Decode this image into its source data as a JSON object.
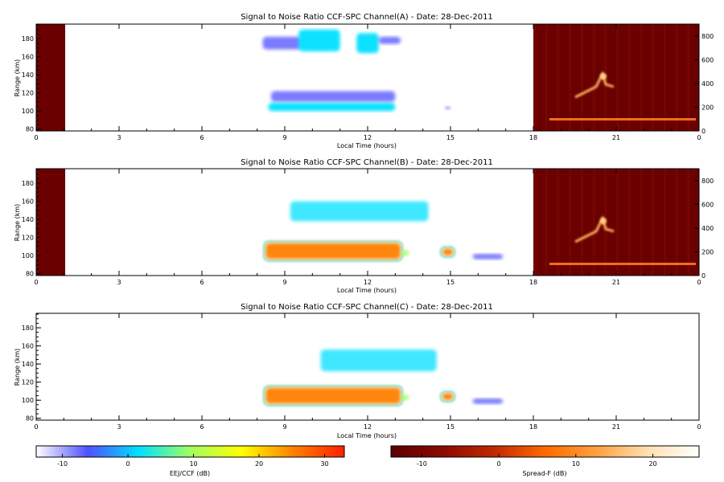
{
  "chart_data": [
    {
      "type": "heatmap",
      "title": "Signal to Noise Ratio CCF-SPC Channel(A) - Date: 28-Dec-2011",
      "xlabel": "Local Time (hours)",
      "ylabel": "Range (km)",
      "xlim": [
        0,
        24
      ],
      "ylim": [
        78,
        196
      ],
      "xticks": [
        "0",
        "3",
        "6",
        "9",
        "12",
        "15",
        "18",
        "21",
        "0"
      ],
      "yticks": [
        "80",
        "100",
        "120",
        "140",
        "160",
        "180"
      ],
      "right_yticks": [
        "0",
        "200",
        "400",
        "600",
        "800"
      ],
      "right_ylim": [
        0,
        900
      ],
      "spread_f_panels": [
        [
          0,
          1.05
        ],
        [
          18,
          24
        ]
      ],
      "ejj_patches": [
        {
          "t0": 8.2,
          "t1": 9.6,
          "r0": 168,
          "r1": 182,
          "level": -8
        },
        {
          "t0": 9.5,
          "t1": 11.0,
          "r0": 166,
          "r1": 190,
          "level": 5
        },
        {
          "t0": 11.6,
          "t1": 12.4,
          "r0": 164,
          "r1": 186,
          "level": 5
        },
        {
          "t0": 12.4,
          "t1": 13.2,
          "r0": 174,
          "r1": 182,
          "level": -8
        },
        {
          "t0": 8.5,
          "t1": 13.0,
          "r0": 110,
          "r1": 122,
          "level": -6
        },
        {
          "t0": 8.4,
          "t1": 13.0,
          "r0": 100,
          "r1": 109,
          "level": 4
        },
        {
          "t0": 14.8,
          "t1": 15.0,
          "r0": 102,
          "r1": 105,
          "level": -4
        }
      ]
    },
    {
      "type": "heatmap",
      "title": "Signal to Noise Ratio CCF-SPC Channel(B) - Date: 28-Dec-2011",
      "xlabel": "Local Time (hours)",
      "ylabel": "Range (km)",
      "xlim": [
        0,
        24
      ],
      "ylim": [
        78,
        196
      ],
      "xticks": [
        "0",
        "3",
        "6",
        "9",
        "12",
        "15",
        "18",
        "21",
        "0"
      ],
      "yticks": [
        "80",
        "100",
        "120",
        "140",
        "160",
        "180"
      ],
      "right_yticks": [
        "0",
        "200",
        "400",
        "600",
        "800"
      ],
      "right_ylim": [
        0,
        900
      ],
      "spread_f_panels": [
        [
          0,
          1.05
        ],
        [
          18,
          24
        ]
      ],
      "ejj_patches": [
        {
          "t0": 9.2,
          "t1": 14.2,
          "r0": 138,
          "r1": 160,
          "level": -2
        },
        {
          "t0": 8.3,
          "t1": 13.2,
          "r0": 96,
          "r1": 114,
          "level": 28
        },
        {
          "t0": 13.2,
          "t1": 13.5,
          "r0": 100,
          "r1": 106,
          "level": 12
        },
        {
          "t0": 14.7,
          "t1": 15.1,
          "r0": 100,
          "r1": 108,
          "level": 24
        },
        {
          "t0": 15.8,
          "t1": 16.9,
          "r0": 96,
          "r1": 102,
          "level": -8
        }
      ]
    },
    {
      "type": "heatmap",
      "title": "Signal to Noise Ratio CCF-SPC Channel(C) - Date: 28-Dec-2011",
      "xlabel": "Local Time (hours)",
      "ylabel": "Range (km)",
      "xlim": [
        0,
        24
      ],
      "ylim": [
        78,
        196
      ],
      "xticks": [
        "0",
        "3",
        "6",
        "9",
        "12",
        "15",
        "18",
        "21",
        "0"
      ],
      "yticks": [
        "80",
        "100",
        "120",
        "140",
        "160",
        "180"
      ],
      "spread_f_panels": [],
      "ejj_patches": [
        {
          "t0": 10.3,
          "t1": 14.5,
          "r0": 132,
          "r1": 156,
          "level": -2
        },
        {
          "t0": 8.3,
          "t1": 13.2,
          "r0": 96,
          "r1": 114,
          "level": 27
        },
        {
          "t0": 13.2,
          "t1": 13.5,
          "r0": 100,
          "r1": 106,
          "level": 12
        },
        {
          "t0": 14.7,
          "t1": 15.1,
          "r0": 100,
          "r1": 108,
          "level": 24
        },
        {
          "t0": 15.8,
          "t1": 16.9,
          "r0": 96,
          "r1": 102,
          "level": -8
        }
      ]
    }
  ],
  "colorbars": [
    {
      "label": "EEJ/CCF (dB)",
      "ticks": [
        "-10",
        "0",
        "10",
        "20",
        "30"
      ],
      "range": [
        -14,
        33
      ],
      "colors": [
        "#ffffff",
        "#5050ff",
        "#00e0ff",
        "#a0ff60",
        "#ffff00",
        "#ff8000",
        "#ff2000"
      ]
    },
    {
      "label": "Spread-F (dB)",
      "ticks": [
        "-10",
        "0",
        "10",
        "20"
      ],
      "range": [
        -14,
        26
      ],
      "colors": [
        "#5a0000",
        "#8a0a00",
        "#c02800",
        "#ff6a00",
        "#ffa040",
        "#ffe0b0",
        "#ffffff"
      ]
    }
  ]
}
